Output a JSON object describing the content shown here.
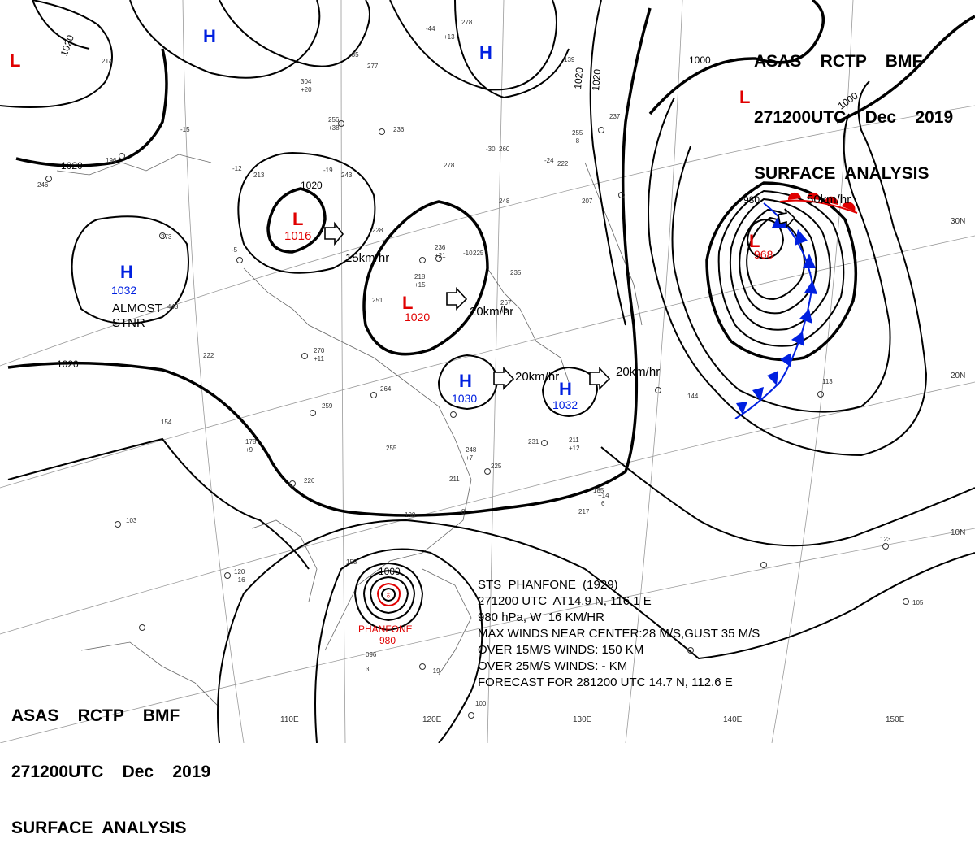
{
  "header": {
    "line1": "ASAS    RCTP    BMF",
    "line2": "271200UTC    Dec    2019",
    "line3": "SURFACE  ANALYSIS"
  },
  "lon_labels": [
    "110E",
    "120E",
    "130E",
    "140E",
    "150E"
  ],
  "lat_labels": [
    "30N",
    "20N",
    "10N"
  ],
  "isobar_labels": [
    "1020",
    "1020",
    "1020",
    "1020",
    "1020",
    "1020",
    "1000",
    "1000",
    "980",
    "1000"
  ],
  "systems": [
    {
      "type": "L",
      "color": "#e00000",
      "pressure": ""
    },
    {
      "type": "L",
      "color": "#e00000",
      "pressure": ""
    },
    {
      "type": "H",
      "color": "#0020e0",
      "pressure": ""
    },
    {
      "type": "H",
      "color": "#0020e0",
      "pressure": ""
    },
    {
      "type": "L",
      "color": "#e00000",
      "pressure": "1016"
    },
    {
      "type": "H",
      "color": "#0020e0",
      "pressure": "1032"
    },
    {
      "type": "L",
      "color": "#e00000",
      "pressure": "1020"
    },
    {
      "type": "H",
      "color": "#0020e0",
      "pressure": "1030"
    },
    {
      "type": "H",
      "color": "#0020e0",
      "pressure": "1032"
    },
    {
      "type": "L",
      "color": "#e00000",
      "pressure": "968"
    }
  ],
  "motions": [
    "15km/hr",
    "20km/hr",
    "20km/hr",
    "20km/hr",
    "50km/hr"
  ],
  "almost_stnr": [
    "ALMOST",
    "STNR"
  ],
  "typhoon": {
    "name": "PHANFONE",
    "pressure": "980",
    "isobar": "1000"
  },
  "typhoon_info": {
    "line1": "STS  PHANFONE  (1929)",
    "line2": "271200 UTC  AT14.9 N, 116.1 E",
    "line3": "980 hPa, W  16 KM/HR",
    "line4": "MAX WINDS NEAR CENTER:28 M/S,GUST 35 M/S",
    "line5": "OVER 15M/S WINDS: 150 KM",
    "line6": "OVER 25M/S WINDS: - KM",
    "line7": "FORECAST FOR 281200 UTC 14.7 N, 112.6 E"
  },
  "station_values": [
    "214",
    "304",
    "277",
    "256",
    "236",
    "278",
    "260",
    "139",
    "255",
    "213",
    "243",
    "228",
    "273",
    "236",
    "225",
    "218",
    "235",
    "267",
    "443",
    "251",
    "270",
    "222",
    "264",
    "259",
    "154",
    "178",
    "255",
    "248",
    "225",
    "231",
    "211",
    "144",
    "113",
    "226",
    "211",
    "190",
    "103",
    "120",
    "158",
    "096",
    "123",
    "105",
    "100",
    "217",
    "278",
    "246",
    "196",
    "248",
    "237",
    "222",
    "207",
    "185",
    "-44",
    "-35",
    "-30",
    "-24",
    "-15",
    "-19",
    "-12",
    "-5",
    "-10",
    "+13",
    "+20",
    "+38",
    "+21",
    "+11",
    "+9",
    "+7",
    "+16",
    "+12",
    "+3",
    "+8",
    "+15",
    "+19",
    "+14",
    "8",
    "3",
    "6"
  ],
  "colors": {
    "high": "#0020e0",
    "low": "#e00000",
    "front": "#0020e0",
    "warm_front": "#e00000"
  }
}
